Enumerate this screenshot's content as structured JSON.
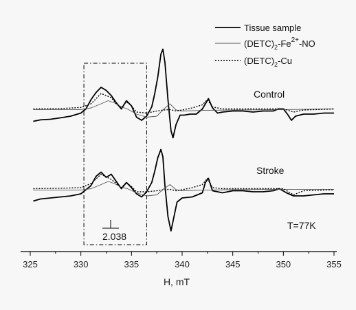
{
  "chart_data": {
    "type": "line",
    "xlabel": "H, mT",
    "ylabel": "",
    "xlim": [
      325,
      355
    ],
    "x_ticks": [
      "325",
      "330",
      "335",
      "340",
      "345",
      "350",
      "355"
    ],
    "legend": {
      "placement": "top-right",
      "entries": [
        {
          "series": "Tissue sample",
          "label": "Tissue sample"
        },
        {
          "series": "(DETC)2-Fe2+-NO",
          "label_parts": [
            "(DETC)",
            "2",
            "-Fe",
            "2+",
            "-NO"
          ]
        },
        {
          "series": "(DETC)2-Cu",
          "label_parts": [
            "(DETC)",
            "2",
            "-Cu"
          ]
        }
      ]
    },
    "panels": [
      {
        "name": "Control",
        "series": [
          {
            "name": "Tissue sample",
            "style": "solid-thick",
            "x": [
              325.3,
              326,
              327,
              328,
              329,
              330,
              330.5,
              331,
              331.5,
              332,
              332.5,
              333,
              333.5,
              334,
              334.5,
              335,
              335.5,
              336,
              336.5,
              337,
              337.3,
              337.6,
              337.9,
              338.1,
              338.3,
              338.6,
              338.9,
              339.1,
              339.4,
              339.8,
              340.2,
              340.8,
              341.4,
              342,
              342.3,
              342.6,
              343,
              343.5,
              344,
              345,
              346,
              347,
              348,
              349,
              349.5,
              350,
              350.4,
              350.8,
              351.2,
              352,
              353,
              354,
              355
            ],
            "y": [
              -0.55,
              -0.48,
              -0.45,
              -0.38,
              -0.3,
              -0.15,
              0.05,
              0.5,
              0.85,
              1.1,
              0.95,
              0.7,
              0.35,
              0.05,
              0.45,
              0.2,
              -0.35,
              -0.5,
              -0.3,
              0.15,
              0.8,
              1.6,
              2.7,
              2.95,
              2.3,
              0.5,
              -1.0,
              -1.35,
              -0.7,
              -0.25,
              -0.25,
              -0.2,
              -0.2,
              0.05,
              0.3,
              0.55,
              0.1,
              -0.15,
              -0.1,
              -0.05,
              -0.05,
              -0.1,
              -0.05,
              -0.05,
              0.05,
              0.05,
              -0.2,
              -0.5,
              -0.3,
              -0.2,
              -0.2,
              -0.15,
              -0.15
            ]
          },
          {
            "name": "(DETC)2-Fe2+-NO",
            "style": "solid-thin",
            "x": [
              325.3,
              330,
              331,
              332,
              332.7,
              333.3,
              334,
              334.6,
              335.5,
              336.5,
              337.5,
              338.2,
              338.8,
              339.4,
              340,
              342,
              345,
              350,
              355
            ],
            "y": [
              0.02,
              0.02,
              0.1,
              0.3,
              0.45,
              0.35,
              0.15,
              0.05,
              -0.2,
              -0.35,
              -0.3,
              0.05,
              0.3,
              0.0,
              -0.05,
              -0.02,
              0.0,
              0.02,
              0.05
            ]
          },
          {
            "name": "(DETC)2-Cu",
            "style": "dotted",
            "x": [
              325.3,
              328,
              330,
              331,
              332,
              333,
              333.5,
              334,
              334.5,
              335,
              335.5,
              336.5,
              337.5,
              338.2,
              338.8,
              339.4,
              340,
              341,
              342,
              342.5,
              343,
              344,
              346,
              348,
              350,
              351,
              352,
              355
            ],
            "y": [
              0.05,
              0.07,
              0.12,
              0.3,
              0.8,
              0.6,
              0.3,
              0.1,
              0.4,
              0.2,
              -0.1,
              -0.15,
              -0.05,
              0.0,
              0.02,
              -0.05,
              0.0,
              0.1,
              0.25,
              0.5,
              0.15,
              0.05,
              0.05,
              0.05,
              0.05,
              -0.1,
              0.0,
              0.05
            ]
          }
        ]
      },
      {
        "name": "Stroke",
        "series": [
          {
            "name": "Tissue sample",
            "style": "solid-thick",
            "x": [
              325.3,
              326,
              327,
              328,
              329,
              330,
              331,
              331.5,
              332,
              332.5,
              333,
              333.5,
              334,
              334.5,
              335,
              335.5,
              336,
              336.5,
              337,
              337.3,
              337.6,
              337.9,
              338.1,
              338.3,
              338.6,
              338.9,
              339.2,
              339.5,
              340,
              341,
              342,
              342.3,
              342.6,
              343,
              344,
              345,
              346,
              347,
              348,
              349,
              349.6,
              350.3,
              351,
              352,
              353,
              354,
              355
            ],
            "y": [
              -0.55,
              -0.45,
              -0.4,
              -0.35,
              -0.3,
              -0.2,
              0.2,
              0.65,
              0.85,
              0.6,
              0.75,
              0.4,
              0.05,
              0.35,
              0.1,
              -0.2,
              -0.35,
              -0.1,
              0.35,
              0.9,
              1.55,
              1.95,
              1.6,
              0.2,
              -1.3,
              -2.0,
              -1.3,
              -0.6,
              -0.4,
              -0.35,
              -0.15,
              0.35,
              0.55,
              -0.05,
              -0.15,
              -0.05,
              -0.05,
              -0.1,
              -0.1,
              -0.05,
              0.05,
              -0.15,
              -0.3,
              -0.3,
              -0.25,
              -0.2,
              -0.2
            ]
          },
          {
            "name": "(DETC)2-Fe2+-NO",
            "style": "solid-thin",
            "x": [
              325.3,
              330,
              331,
              332,
              332.7,
              333.3,
              334,
              334.6,
              335.5,
              336.5,
              337.5,
              338.2,
              338.8,
              339.4,
              340,
              342,
              345,
              350,
              355
            ],
            "y": [
              -0.02,
              -0.02,
              0.05,
              0.25,
              0.4,
              0.3,
              0.12,
              0.05,
              -0.15,
              -0.3,
              -0.25,
              0.05,
              0.25,
              0.0,
              -0.05,
              -0.02,
              0.0,
              0.02,
              0.02
            ]
          },
          {
            "name": "(DETC)2-Cu",
            "style": "dotted",
            "x": [
              325.3,
              328,
              330,
              331,
              332,
              333,
              333.5,
              334,
              334.5,
              335,
              335.5,
              336.5,
              337.5,
              338.2,
              338.8,
              339.4,
              340,
              341,
              342,
              342.5,
              343,
              344,
              346,
              348,
              350,
              351,
              352,
              355
            ],
            "y": [
              0.05,
              0.07,
              0.1,
              0.3,
              0.75,
              0.5,
              0.3,
              0.1,
              0.35,
              0.15,
              -0.1,
              -0.1,
              -0.05,
              0.0,
              0.02,
              -0.05,
              0.0,
              0.1,
              0.25,
              0.55,
              0.1,
              0.05,
              0.05,
              0.05,
              0.05,
              -0.25,
              -0.05,
              0.0
            ]
          }
        ]
      }
    ],
    "annotations": {
      "control_label": "Control",
      "stroke_label": "Stroke",
      "g_value": "2.038",
      "temperature": "T=77K"
    },
    "highlight_box_x": [
      330.3,
      336.5
    ]
  }
}
